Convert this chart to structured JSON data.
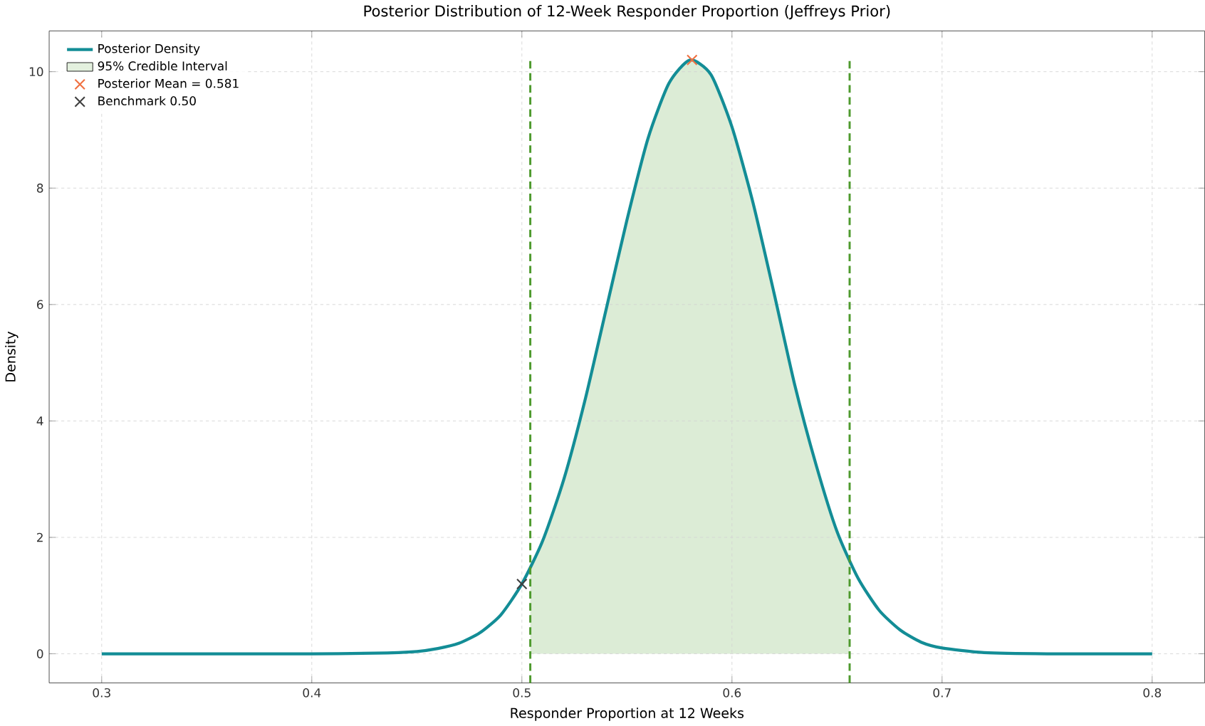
{
  "chart_data": {
    "type": "line",
    "title": "Posterior Distribution of 12-Week Responder Proportion (Jeffreys Prior)",
    "xlabel": "Responder Proportion at 12 Weeks",
    "ylabel": "Density",
    "xlim": [
      0.275,
      0.825
    ],
    "ylim": [
      -0.5,
      10.7
    ],
    "xticks": [
      0.3,
      0.4,
      0.5,
      0.6,
      0.7,
      0.8
    ],
    "yticks": [
      0,
      2,
      4,
      6,
      8,
      10
    ],
    "grid": true,
    "legend": "top left",
    "series": [
      {
        "name": "Posterior Density",
        "color": "#138d96",
        "line_style": "solid",
        "x": [
          0.3,
          0.35,
          0.4,
          0.43,
          0.45,
          0.46,
          0.47,
          0.48,
          0.49,
          0.5,
          0.51,
          0.52,
          0.53,
          0.54,
          0.55,
          0.56,
          0.57,
          0.58,
          0.59,
          0.6,
          0.61,
          0.62,
          0.63,
          0.64,
          0.65,
          0.66,
          0.67,
          0.68,
          0.69,
          0.7,
          0.72,
          0.75,
          0.8
        ],
        "values": [
          0,
          0,
          0,
          0.01,
          0.04,
          0.09,
          0.18,
          0.36,
          0.67,
          1.2,
          1.95,
          3.0,
          4.35,
          5.9,
          7.45,
          8.85,
          9.8,
          10.2,
          9.95,
          9.05,
          7.75,
          6.2,
          4.6,
          3.25,
          2.1,
          1.3,
          0.75,
          0.41,
          0.2,
          0.1,
          0.02,
          0,
          0
        ]
      },
      {
        "name": "95% Credible Interval",
        "type": "area",
        "color": "#dcecd6",
        "x": [
          0.504,
          0.51,
          0.52,
          0.53,
          0.54,
          0.55,
          0.56,
          0.57,
          0.58,
          0.59,
          0.6,
          0.61,
          0.62,
          0.63,
          0.64,
          0.65,
          0.656
        ],
        "values": [
          1.5,
          1.95,
          3.0,
          4.35,
          5.9,
          7.45,
          8.85,
          9.8,
          10.2,
          9.95,
          9.05,
          7.75,
          6.2,
          4.6,
          3.25,
          2.1,
          1.6
        ]
      },
      {
        "name": "Posterior Mean = 0.581",
        "type": "scatter",
        "marker": "cross",
        "color": "#f07040",
        "x": [
          0.581
        ],
        "values": [
          10.2
        ]
      },
      {
        "name": "Benchmark 0.50",
        "type": "scatter",
        "marker": "cross",
        "color": "#404040",
        "x": [
          0.5
        ],
        "values": [
          1.2
        ]
      }
    ],
    "ref_lines": [
      {
        "axis": "x",
        "value": 0.504,
        "color": "#4e9a2e",
        "line_style": "dashed"
      },
      {
        "axis": "x",
        "value": 0.656,
        "color": "#4e9a2e",
        "line_style": "dashed"
      }
    ]
  }
}
